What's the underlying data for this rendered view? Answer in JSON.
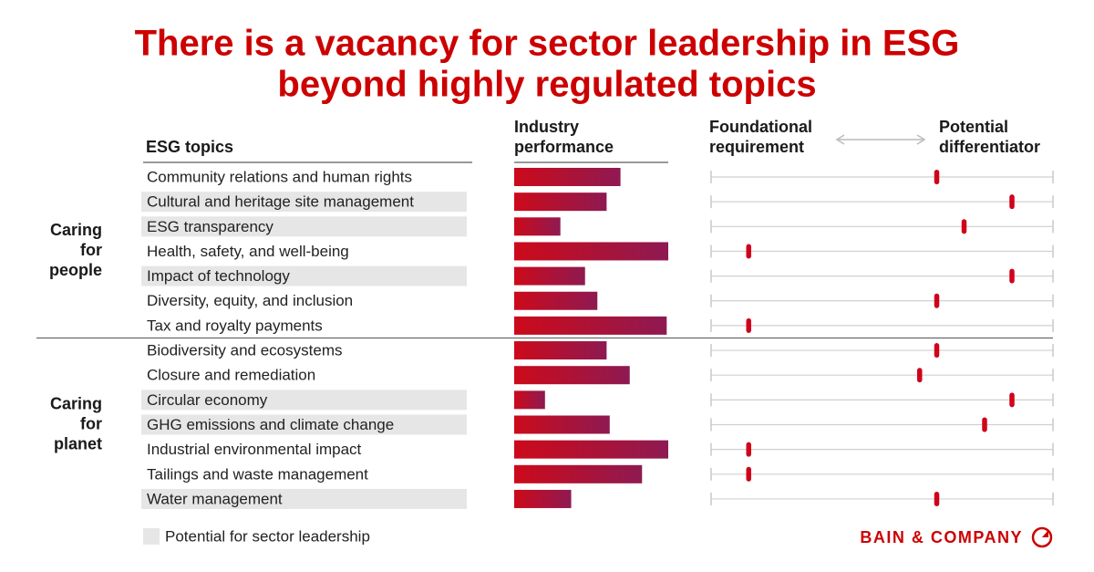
{
  "chart_data": {
    "type": "bar-dot-table",
    "title_lines": [
      "There is a vacancy for sector leadership in ESG",
      "beyond highly regulated topics"
    ],
    "topic_header": "ESG topics",
    "performance_header": [
      "Industry",
      "performance"
    ],
    "left_header": [
      "Foundational",
      "requirement"
    ],
    "right_header": [
      "Potential",
      "differentiator"
    ],
    "performance_xlim": [
      0,
      100
    ],
    "position_xlim": [
      0,
      100
    ],
    "bar_colors": [
      "#cc0a1a",
      "#8e1a52"
    ],
    "dot_color": "#d0021b",
    "highlight_color": "#e6e6e6",
    "title_color": "#cc0000",
    "legend": "Potential for sector leadership",
    "logo": "BAIN & COMPANY",
    "groups": [
      {
        "label": [
          "Caring",
          "for",
          "people"
        ],
        "rows": [
          {
            "topic": "Community relations and human rights",
            "highlight": false,
            "performance": 69,
            "position": 66
          },
          {
            "topic": "Cultural and heritage site management",
            "highlight": true,
            "performance": 60,
            "position": 88
          },
          {
            "topic": "ESG transparency",
            "highlight": true,
            "performance": 30,
            "position": 74
          },
          {
            "topic": "Health, safety, and well-being",
            "highlight": false,
            "performance": 100,
            "position": 11
          },
          {
            "topic": "Impact of technology",
            "highlight": true,
            "performance": 46,
            "position": 88
          },
          {
            "topic": "Diversity, equity, and inclusion",
            "highlight": false,
            "performance": 54,
            "position": 66
          },
          {
            "topic": "Tax and royalty payments",
            "highlight": false,
            "performance": 99,
            "position": 11
          }
        ]
      },
      {
        "label": [
          "Caring",
          "for",
          "planet"
        ],
        "rows": [
          {
            "topic": "Biodiversity and ecosystems",
            "highlight": false,
            "performance": 60,
            "position": 66
          },
          {
            "topic": "Closure and remediation",
            "highlight": false,
            "performance": 75,
            "position": 61
          },
          {
            "topic": "Circular economy",
            "highlight": true,
            "performance": 20,
            "position": 88
          },
          {
            "topic": "GHG emissions and climate change",
            "highlight": true,
            "performance": 62,
            "position": 80
          },
          {
            "topic": "Industrial environmental impact",
            "highlight": false,
            "performance": 100,
            "position": 11
          },
          {
            "topic": "Tailings and waste management",
            "highlight": false,
            "performance": 83,
            "position": 11
          },
          {
            "topic": "Water management",
            "highlight": true,
            "performance": 37,
            "position": 66
          }
        ]
      }
    ]
  }
}
